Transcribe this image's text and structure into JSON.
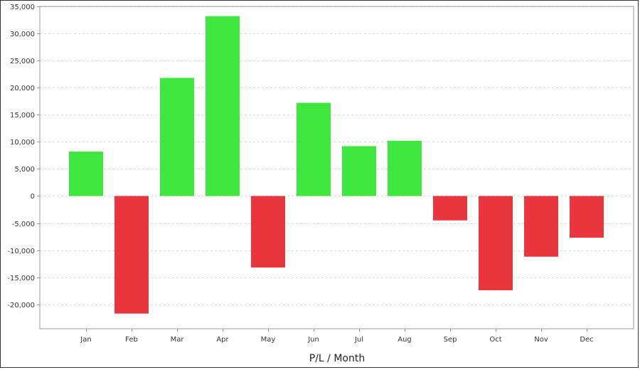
{
  "chart_data": {
    "type": "bar",
    "title": "",
    "xlabel": "P/L / Month",
    "ylabel": "",
    "categories": [
      "Jan",
      "Feb",
      "Mar",
      "Apr",
      "May",
      "Jun",
      "Jul",
      "Aug",
      "Sep",
      "Oct",
      "Nov",
      "Dec"
    ],
    "values": [
      8200,
      -21700,
      21800,
      33200,
      -13200,
      17200,
      9200,
      10200,
      -4500,
      -17400,
      -11200,
      -7700
    ],
    "ylim": [
      -24500,
      35000
    ],
    "yticks": [
      35000,
      30000,
      25000,
      20000,
      15000,
      10000,
      5000,
      0,
      -5000,
      -10000,
      -15000,
      -20000
    ],
    "ytick_labels": [
      "35,000",
      "30,000",
      "25,000",
      "20,000",
      "15,000",
      "10,000",
      "5,000",
      "0",
      "-5,000",
      "-10,000",
      "-15,000",
      "-20,000"
    ],
    "grid": true,
    "legend": "none",
    "colors": {
      "positive": "#3ee63e",
      "negative": "#e8363c",
      "grid": "#d8d8d8",
      "axis": "#999999"
    }
  }
}
